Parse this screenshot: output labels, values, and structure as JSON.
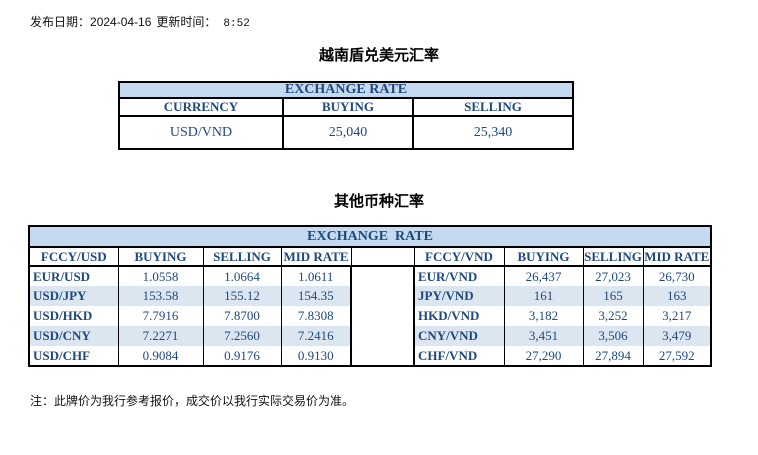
{
  "colors": {
    "header_bg": "#C5D9F1",
    "zebra_bg": "#DCE6F1",
    "text_blue": "#1F497D",
    "border": "#000000"
  },
  "header": {
    "publish_label": "发布日期：",
    "publish_date": "2024-04-16",
    "update_label": "更新时间：",
    "update_time": "8:52"
  },
  "usd_table": {
    "section_title": "越南盾兑美元汇率",
    "title": "EXCHANGE RATE",
    "columns": [
      "CURRENCY",
      "BUYING",
      "SELLING"
    ],
    "rows": [
      [
        "USD/VND",
        "25,040",
        "25,340"
      ]
    ]
  },
  "other_table": {
    "section_title": "其他币种汇率",
    "title": "EXCHANGE  RATE",
    "left": {
      "columns": [
        "FCCY/USD",
        "BUYING",
        "SELLING",
        "MID RATE"
      ],
      "rows": [
        [
          "EUR/USD",
          "1.0558",
          "1.0664",
          "1.0611"
        ],
        [
          "USD/JPY",
          "153.58",
          "155.12",
          "154.35"
        ],
        [
          "USD/HKD",
          "7.7916",
          "7.8700",
          "7.8308"
        ],
        [
          "USD/CNY",
          "7.2271",
          "7.2560",
          "7.2416"
        ],
        [
          "USD/CHF",
          "0.9084",
          "0.9176",
          "0.9130"
        ]
      ]
    },
    "right": {
      "columns": [
        "FCCY/VND",
        "BUYING",
        "SELLING",
        "MID RATE"
      ],
      "rows": [
        [
          "EUR/VND",
          "26,437",
          "27,023",
          "26,730"
        ],
        [
          "JPY/VND",
          "161",
          "165",
          "163"
        ],
        [
          "HKD/VND",
          "3,182",
          "3,252",
          "3,217"
        ],
        [
          "CNY/VND",
          "3,451",
          "3,506",
          "3,479"
        ],
        [
          "CHF/VND",
          "27,290",
          "27,894",
          "27,592"
        ]
      ]
    }
  },
  "footer": {
    "note": "注：此牌价为我行参考报价，成交价以我行实际交易价为准。"
  }
}
